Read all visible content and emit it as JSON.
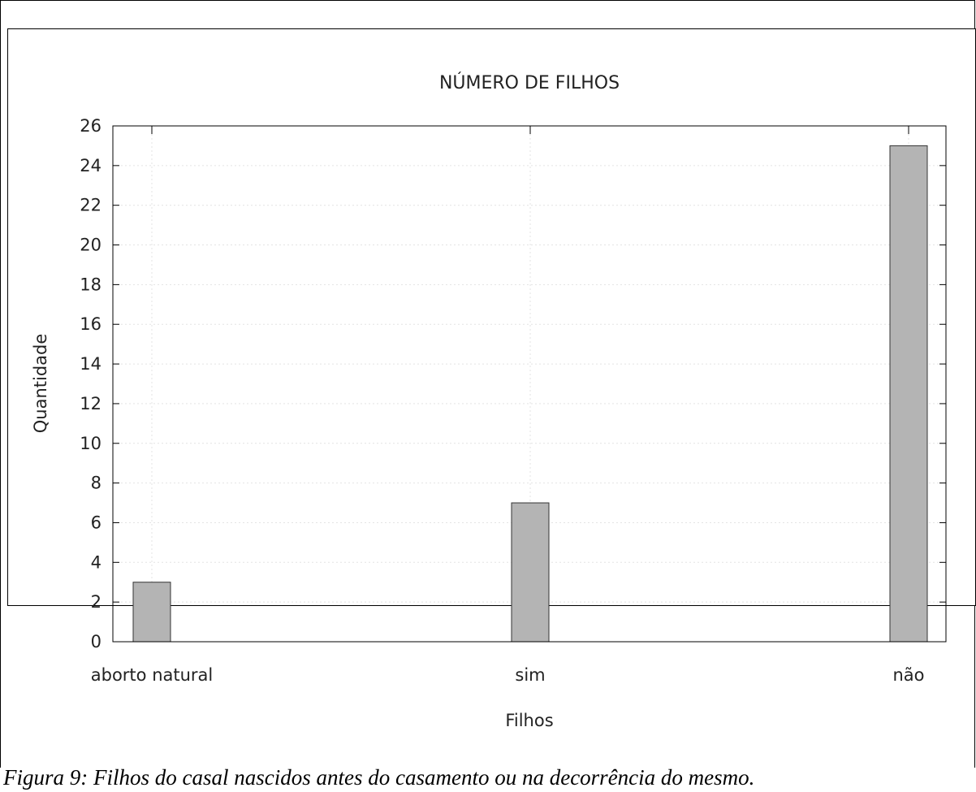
{
  "chart_data": {
    "type": "bar",
    "title": "NÚMERO DE FILHOS",
    "xlabel": "Filhos",
    "ylabel": "Quantidade",
    "categories": [
      "aborto natural",
      "sim",
      "não"
    ],
    "values": [
      3,
      7,
      25
    ],
    "ylim": [
      0,
      26
    ],
    "yticks": [
      0,
      2,
      4,
      6,
      8,
      10,
      12,
      14,
      16,
      18,
      20,
      22,
      24,
      26
    ],
    "grid": true,
    "bar_color": "#b4b4b4"
  },
  "caption": "Figura 9: Filhos do casal nascidos antes do casamento ou na decorrência do mesmo."
}
